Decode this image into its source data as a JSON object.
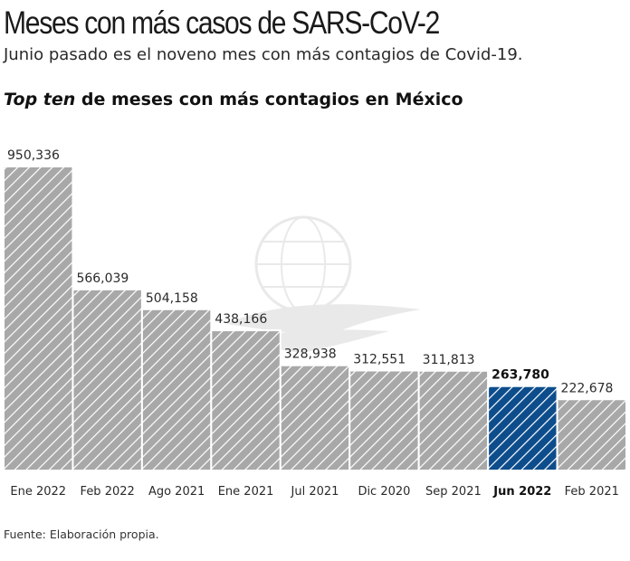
{
  "header": {
    "title": "Meses con más casos de SARS-CoV-2",
    "subtitle": "Junio pasado es el noveno mes con más contagios de Covid-19.",
    "chart_heading_em": "Top ten",
    "chart_heading_rest": " de meses con más contagios en México"
  },
  "footer": {
    "source": "Fuente: Elaboración propia."
  },
  "colors": {
    "bar_fill": "#a8a8a8",
    "bar_hatch": "#ffffff",
    "highlight_fill": "#0d4d8c",
    "border": "#ffffff",
    "watermark": "#d8d8d8"
  },
  "chart_data": {
    "type": "bar",
    "title": "Top ten de meses con más contagios en México",
    "xlabel": "",
    "ylabel": "",
    "ylim": [
      0,
      1000000
    ],
    "grid": false,
    "highlight": "Jun 2022",
    "categories": [
      "Ene 2022",
      "Feb 2022",
      "Ago 2021",
      "Ene 2021",
      "Jul 2021",
      "Dic 2020",
      "Sep 2021",
      "Jun 2022",
      "Feb 2021"
    ],
    "values": [
      950336,
      566039,
      504158,
      438166,
      328938,
      312551,
      311813,
      263780,
      222678
    ],
    "value_labels": [
      "950,336",
      "566,039",
      "504,158",
      "438,166",
      "328,938",
      "312,551",
      "311,813",
      "263,780",
      "222,678"
    ]
  }
}
